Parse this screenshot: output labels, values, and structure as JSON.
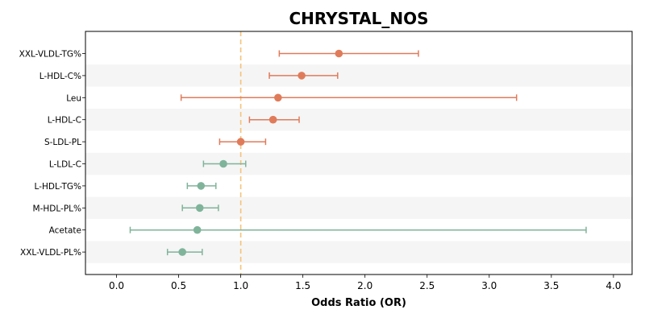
{
  "chart_data": {
    "type": "forest",
    "title": "CHRYSTAL_NOS",
    "xlabel": "Odds Ratio (OR)",
    "ylabel": "",
    "xlim": [
      -0.25,
      4.15
    ],
    "xticks": [
      0.0,
      0.5,
      1.0,
      1.5,
      2.0,
      2.5,
      3.0,
      3.5,
      4.0
    ],
    "xtick_labels": [
      "0.0",
      "0.5",
      "1.0",
      "1.5",
      "2.0",
      "2.5",
      "3.0",
      "3.5",
      "4.0"
    ],
    "reference_line": 1.0,
    "grid": false,
    "alternating_row_bands": true,
    "colors": {
      "up": "#e07b5a",
      "down": "#7fb49a",
      "reference": "#f5c27a",
      "band": "#f5f5f5"
    },
    "rows": [
      {
        "label": "XXL-VLDL-TG%",
        "or": 1.79,
        "lower": 1.31,
        "upper": 2.43
      },
      {
        "label": "L-HDL-C%",
        "or": 1.49,
        "lower": 1.23,
        "upper": 1.78
      },
      {
        "label": "Leu",
        "or": 1.3,
        "lower": 0.52,
        "upper": 3.22
      },
      {
        "label": "L-HDL-C",
        "or": 1.26,
        "lower": 1.07,
        "upper": 1.47
      },
      {
        "label": "S-LDL-PL",
        "or": 1.0,
        "lower": 0.83,
        "upper": 1.2
      },
      {
        "label": "L-LDL-C",
        "or": 0.86,
        "lower": 0.7,
        "upper": 1.04
      },
      {
        "label": "L-HDL-TG%",
        "or": 0.68,
        "lower": 0.57,
        "upper": 0.8
      },
      {
        "label": "M-HDL-PL%",
        "or": 0.67,
        "lower": 0.53,
        "upper": 0.82
      },
      {
        "label": "Acetate",
        "or": 0.65,
        "lower": 0.11,
        "upper": 3.78
      },
      {
        "label": "XXL-VLDL-PL%",
        "or": 0.53,
        "lower": 0.41,
        "upper": 0.69
      }
    ]
  }
}
